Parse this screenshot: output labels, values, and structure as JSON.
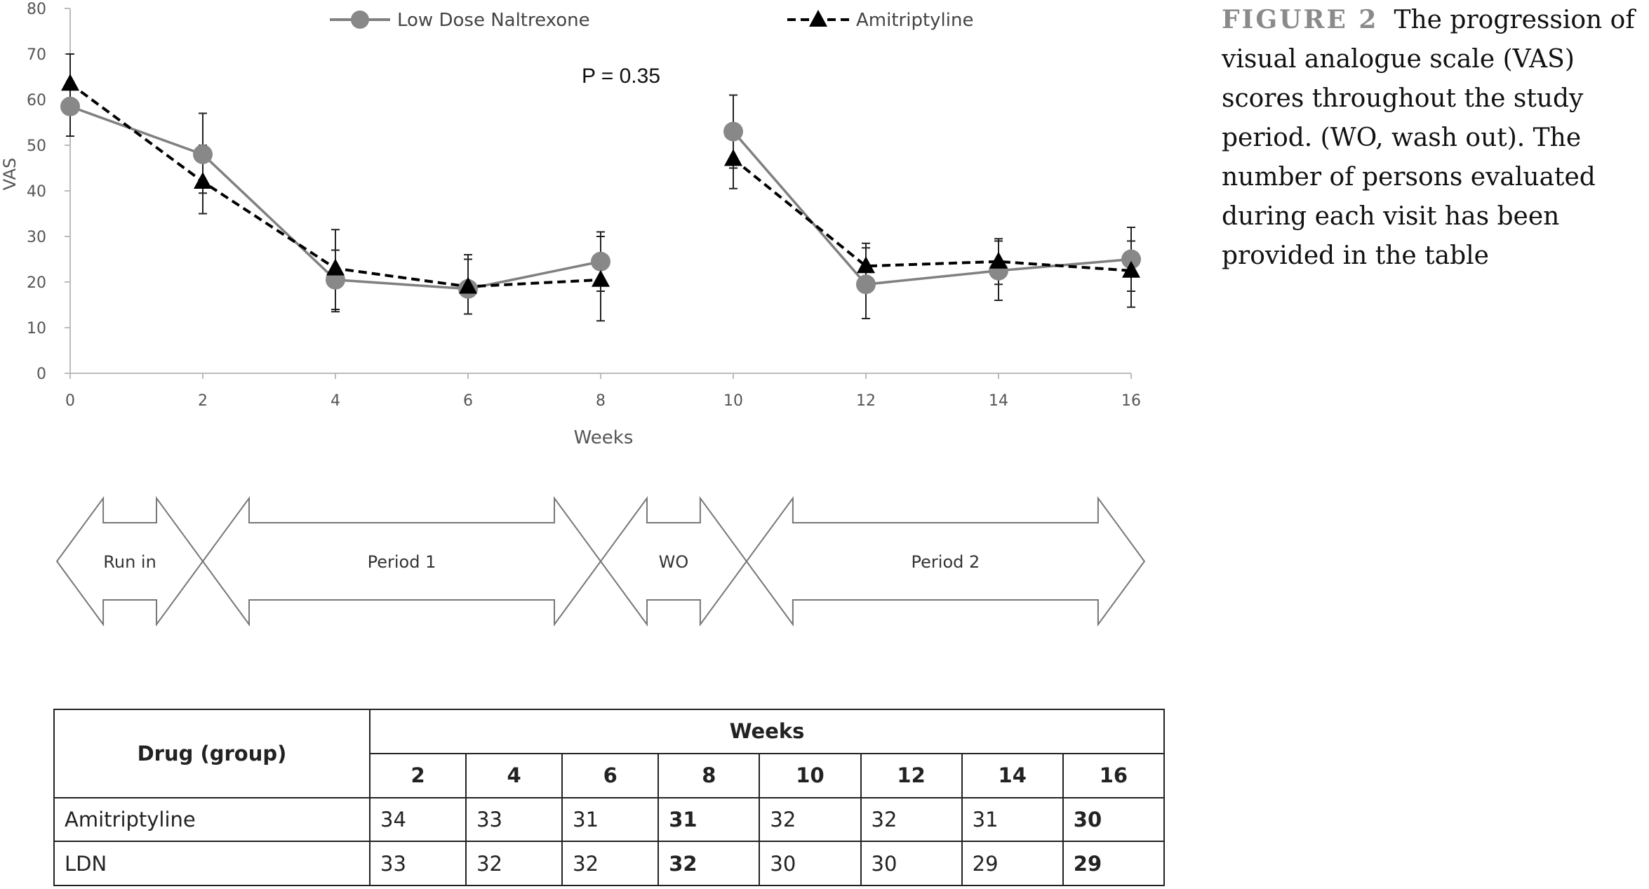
{
  "chart_data": [
    {
      "type": "line",
      "title": "",
      "annotation": "P = 0.35",
      "xlabel": "Weeks",
      "ylabel": "VAS",
      "xlim": [
        0,
        16
      ],
      "ylim": [
        0,
        80
      ],
      "x_ticks": [
        0,
        2,
        4,
        6,
        8,
        10,
        12,
        14,
        16
      ],
      "y_ticks": [
        0,
        10,
        20,
        30,
        40,
        50,
        60,
        70,
        80
      ],
      "grid": false,
      "legend_position": "top",
      "series": [
        {
          "name": "Low Dose Naltrexone",
          "marker": "circle",
          "line_style": "solid",
          "color": "#808080",
          "segments": [
            [
              {
                "x": 0,
                "y": 58.5,
                "err_low": 52,
                "err_high": 64
              },
              {
                "x": 2,
                "y": 48,
                "err_low": 39.5,
                "err_high": 50
              },
              {
                "x": 4,
                "y": 20.5,
                "err_low": 14,
                "err_high": 27
              },
              {
                "x": 6,
                "y": 18.5,
                "err_low": 13,
                "err_high": 25
              },
              {
                "x": 8,
                "y": 24.5,
                "err_low": 18,
                "err_high": 31
              }
            ],
            [
              {
                "x": 10,
                "y": 53,
                "err_low": 45,
                "err_high": 61
              },
              {
                "x": 12,
                "y": 19.5,
                "err_low": 12,
                "err_high": 27.5
              },
              {
                "x": 14,
                "y": 22.5,
                "err_low": 16,
                "err_high": 29
              },
              {
                "x": 16,
                "y": 25,
                "err_low": 18,
                "err_high": 32
              }
            ]
          ]
        },
        {
          "name": "Amitriptyline",
          "marker": "triangle",
          "line_style": "dashed",
          "color": "#000000",
          "segments": [
            [
              {
                "x": 0,
                "y": 63.5,
                "err_low": 57,
                "err_high": 70
              },
              {
                "x": 2,
                "y": 42,
                "err_low": 35,
                "err_high": 57
              },
              {
                "x": 4,
                "y": 23,
                "err_low": 13.5,
                "err_high": 31.5
              },
              {
                "x": 6,
                "y": 19,
                "err_low": 13,
                "err_high": 26
              },
              {
                "x": 8,
                "y": 20.5,
                "err_low": 11.5,
                "err_high": 30
              }
            ],
            [
              {
                "x": 10,
                "y": 47,
                "err_low": 40.5,
                "err_high": 53
              },
              {
                "x": 12,
                "y": 23.5,
                "err_low": 19,
                "err_high": 28.5
              },
              {
                "x": 14,
                "y": 24.5,
                "err_low": 19.5,
                "err_high": 29.5
              },
              {
                "x": 16,
                "y": 22.5,
                "err_low": 14.5,
                "err_high": 29
              }
            ]
          ]
        }
      ]
    },
    {
      "type": "table",
      "row_header": "Drug (group)",
      "column_group": "Weeks",
      "columns": [
        "2",
        "4",
        "6",
        "8",
        "10",
        "12",
        "14",
        "16"
      ],
      "rows": [
        {
          "label": "Amitriptyline",
          "values": [
            "34",
            "33",
            "31",
            "31",
            "32",
            "32",
            "31",
            "30"
          ]
        },
        {
          "label": "LDN",
          "values": [
            "33",
            "32",
            "32",
            "32",
            "30",
            "30",
            "29",
            "29"
          ]
        }
      ]
    }
  ],
  "timeline": [
    {
      "label": "Run in",
      "weeks": [
        -0.2,
        2
      ]
    },
    {
      "label": "Period 1",
      "weeks": [
        2,
        8
      ]
    },
    {
      "label": "WO",
      "weeks": [
        8,
        10.2
      ]
    },
    {
      "label": "Period 2",
      "weeks": [
        10.2,
        16.2
      ]
    }
  ],
  "caption": {
    "label": "FIGURE 2",
    "text": "The progression of visual analogue scale (VAS) scores throughout the study period. (WO, wash out). The number of persons evaluated during each visit has been provided in the table"
  }
}
